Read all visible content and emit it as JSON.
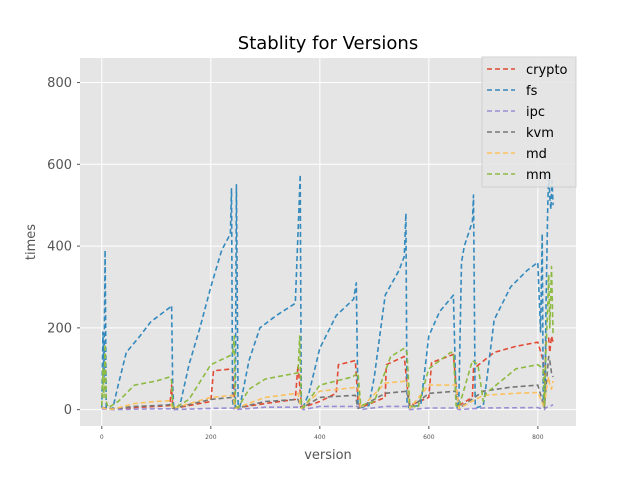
{
  "chart_data": {
    "type": "line",
    "title": "Stablity for Versions",
    "xlabel": "version",
    "ylabel": "times",
    "xlim": [
      -40,
      870
    ],
    "ylim": [
      -40,
      860
    ],
    "xticks": [
      0,
      200,
      400,
      600,
      800
    ],
    "yticks": [
      0,
      200,
      400,
      600,
      800
    ],
    "grid": true,
    "style": "ggplot",
    "legend_position": "top-right",
    "series": [
      {
        "name": "crypto",
        "color": "#E24A33",
        "points": [
          [
            0,
            5
          ],
          [
            5,
            3
          ],
          [
            10,
            2
          ],
          [
            30,
            3
          ],
          [
            60,
            5
          ],
          [
            100,
            8
          ],
          [
            125,
            10
          ],
          [
            128,
            60
          ],
          [
            130,
            5
          ],
          [
            132,
            3
          ],
          [
            200,
            20
          ],
          [
            205,
            95
          ],
          [
            240,
            100
          ],
          [
            244,
            5
          ],
          [
            250,
            5
          ],
          [
            300,
            15
          ],
          [
            355,
            25
          ],
          [
            360,
            110
          ],
          [
            365,
            30
          ],
          [
            368,
            5
          ],
          [
            400,
            20
          ],
          [
            430,
            40
          ],
          [
            434,
            110
          ],
          [
            465,
            120
          ],
          [
            470,
            20
          ],
          [
            475,
            5
          ],
          [
            520,
            30
          ],
          [
            522,
            110
          ],
          [
            555,
            130
          ],
          [
            560,
            60
          ],
          [
            565,
            10
          ],
          [
            600,
            30
          ],
          [
            605,
            115
          ],
          [
            645,
            135
          ],
          [
            650,
            60
          ],
          [
            655,
            10
          ],
          [
            680,
            30
          ],
          [
            682,
            100
          ],
          [
            720,
            140
          ],
          [
            760,
            155
          ],
          [
            800,
            165
          ],
          [
            810,
            120
          ],
          [
            812,
            20
          ],
          [
            815,
            170
          ],
          [
            820,
            175
          ],
          [
            822,
            140
          ],
          [
            825,
            180
          ],
          [
            828,
            165
          ]
        ]
      },
      {
        "name": "fs",
        "color": "#348ABD",
        "points": [
          [
            0,
            5
          ],
          [
            2,
            190
          ],
          [
            4,
            80
          ],
          [
            6,
            390
          ],
          [
            8,
            5
          ],
          [
            12,
            3
          ],
          [
            20,
            2
          ],
          [
            30,
            60
          ],
          [
            45,
            140
          ],
          [
            70,
            180
          ],
          [
            90,
            215
          ],
          [
            125,
            250
          ],
          [
            128,
            255
          ],
          [
            130,
            60
          ],
          [
            132,
            5
          ],
          [
            138,
            3
          ],
          [
            145,
            20
          ],
          [
            160,
            110
          ],
          [
            180,
            200
          ],
          [
            200,
            300
          ],
          [
            220,
            390
          ],
          [
            236,
            430
          ],
          [
            238,
            540
          ],
          [
            240,
            20
          ],
          [
            243,
            3
          ],
          [
            245,
            5
          ],
          [
            247,
            550
          ],
          [
            250,
            10
          ],
          [
            253,
            5
          ],
          [
            270,
            120
          ],
          [
            290,
            200
          ],
          [
            320,
            230
          ],
          [
            355,
            260
          ],
          [
            362,
            500
          ],
          [
            364,
            575
          ],
          [
            366,
            10
          ],
          [
            369,
            5
          ],
          [
            380,
            40
          ],
          [
            400,
            150
          ],
          [
            430,
            230
          ],
          [
            462,
            270
          ],
          [
            467,
            310
          ],
          [
            470,
            10
          ],
          [
            475,
            5
          ],
          [
            490,
            10
          ],
          [
            500,
            80
          ],
          [
            520,
            280
          ],
          [
            545,
            340
          ],
          [
            555,
            375
          ],
          [
            558,
            480
          ],
          [
            560,
            20
          ],
          [
            563,
            5
          ],
          [
            580,
            10
          ],
          [
            585,
            10
          ],
          [
            600,
            180
          ],
          [
            620,
            240
          ],
          [
            645,
            280
          ],
          [
            650,
            20
          ],
          [
            652,
            5
          ],
          [
            655,
            20
          ],
          [
            660,
            360
          ],
          [
            665,
            400
          ],
          [
            680,
            460
          ],
          [
            682,
            525
          ],
          [
            685,
            10
          ],
          [
            688,
            5
          ],
          [
            700,
            10
          ],
          [
            705,
            60
          ],
          [
            720,
            220
          ],
          [
            750,
            300
          ],
          [
            780,
            340
          ],
          [
            800,
            360
          ],
          [
            805,
            190
          ],
          [
            808,
            430
          ],
          [
            810,
            10
          ],
          [
            813,
            5
          ],
          [
            815,
            250
          ],
          [
            818,
            490
          ],
          [
            820,
            580
          ],
          [
            822,
            520
          ],
          [
            824,
            490
          ],
          [
            826,
            560
          ],
          [
            828,
            500
          ]
        ]
      },
      {
        "name": "ipc",
        "color": "#988ED5",
        "points": [
          [
            0,
            2
          ],
          [
            20,
            0
          ],
          [
            100,
            2
          ],
          [
            128,
            2
          ],
          [
            132,
            0
          ],
          [
            200,
            3
          ],
          [
            240,
            4
          ],
          [
            245,
            0
          ],
          [
            300,
            6
          ],
          [
            365,
            6
          ],
          [
            370,
            0
          ],
          [
            400,
            8
          ],
          [
            470,
            8
          ],
          [
            475,
            0
          ],
          [
            520,
            8
          ],
          [
            560,
            8
          ],
          [
            565,
            0
          ],
          [
            600,
            4
          ],
          [
            650,
            4
          ],
          [
            655,
            0
          ],
          [
            700,
            4
          ],
          [
            800,
            5
          ],
          [
            812,
            0
          ],
          [
            815,
            5
          ],
          [
            822,
            8
          ],
          [
            828,
            12
          ]
        ]
      },
      {
        "name": "kvm",
        "color": "#777777",
        "points": [
          [
            0,
            5
          ],
          [
            20,
            2
          ],
          [
            60,
            8
          ],
          [
            100,
            10
          ],
          [
            125,
            12
          ],
          [
            130,
            3
          ],
          [
            200,
            25
          ],
          [
            240,
            30
          ],
          [
            245,
            3
          ],
          [
            300,
            20
          ],
          [
            360,
            25
          ],
          [
            366,
            3
          ],
          [
            400,
            30
          ],
          [
            465,
            35
          ],
          [
            470,
            3
          ],
          [
            520,
            40
          ],
          [
            560,
            45
          ],
          [
            565,
            3
          ],
          [
            600,
            40
          ],
          [
            650,
            45
          ],
          [
            655,
            3
          ],
          [
            700,
            45
          ],
          [
            750,
            55
          ],
          [
            800,
            60
          ],
          [
            812,
            5
          ],
          [
            815,
            55
          ],
          [
            820,
            130
          ],
          [
            822,
            120
          ],
          [
            825,
            90
          ],
          [
            828,
            80
          ]
        ]
      },
      {
        "name": "md",
        "color": "#FBC15E",
        "points": [
          [
            0,
            5
          ],
          [
            10,
            1
          ],
          [
            20,
            1
          ],
          [
            60,
            15
          ],
          [
            100,
            20
          ],
          [
            125,
            22
          ],
          [
            130,
            3
          ],
          [
            200,
            30
          ],
          [
            240,
            35
          ],
          [
            245,
            3
          ],
          [
            300,
            30
          ],
          [
            360,
            40
          ],
          [
            366,
            3
          ],
          [
            400,
            45
          ],
          [
            470,
            55
          ],
          [
            475,
            3
          ],
          [
            520,
            65
          ],
          [
            560,
            70
          ],
          [
            565,
            3
          ],
          [
            600,
            60
          ],
          [
            650,
            60
          ],
          [
            655,
            3
          ],
          [
            700,
            35
          ],
          [
            760,
            40
          ],
          [
            800,
            42
          ],
          [
            812,
            5
          ],
          [
            815,
            45
          ],
          [
            820,
            80
          ],
          [
            822,
            60
          ],
          [
            825,
            50
          ],
          [
            828,
            70
          ]
        ]
      },
      {
        "name": "mm",
        "color": "#8EBA42",
        "points": [
          [
            0,
            10
          ],
          [
            2,
            100
          ],
          [
            4,
            30
          ],
          [
            6,
            160
          ],
          [
            8,
            20
          ],
          [
            12,
            5
          ],
          [
            30,
            20
          ],
          [
            60,
            60
          ],
          [
            100,
            70
          ],
          [
            125,
            80
          ],
          [
            128,
            70
          ],
          [
            130,
            10
          ],
          [
            135,
            5
          ],
          [
            160,
            25
          ],
          [
            200,
            110
          ],
          [
            240,
            135
          ],
          [
            243,
            180
          ],
          [
            245,
            10
          ],
          [
            250,
            5
          ],
          [
            270,
            50
          ],
          [
            300,
            75
          ],
          [
            360,
            90
          ],
          [
            363,
            180
          ],
          [
            366,
            10
          ],
          [
            370,
            5
          ],
          [
            400,
            60
          ],
          [
            460,
            80
          ],
          [
            470,
            90
          ],
          [
            475,
            10
          ],
          [
            500,
            20
          ],
          [
            530,
            130
          ],
          [
            555,
            150
          ],
          [
            560,
            140
          ],
          [
            565,
            10
          ],
          [
            580,
            5
          ],
          [
            600,
            100
          ],
          [
            640,
            140
          ],
          [
            645,
            140
          ],
          [
            650,
            10
          ],
          [
            655,
            5
          ],
          [
            680,
            120
          ],
          [
            690,
            110
          ],
          [
            700,
            20
          ],
          [
            705,
            40
          ],
          [
            760,
            100
          ],
          [
            800,
            110
          ],
          [
            810,
            100
          ],
          [
            812,
            10
          ],
          [
            815,
            150
          ],
          [
            818,
            250
          ],
          [
            820,
            330
          ],
          [
            822,
            200
          ],
          [
            825,
            350
          ],
          [
            828,
            180
          ]
        ]
      }
    ]
  }
}
